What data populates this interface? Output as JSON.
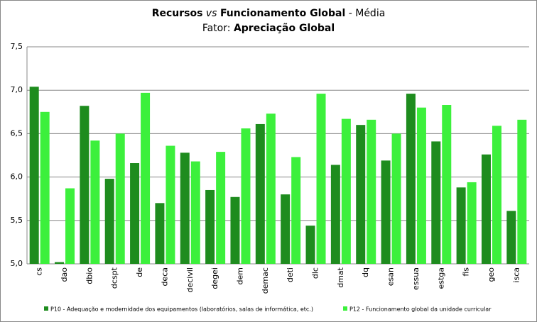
{
  "chart_data": {
    "type": "bar",
    "title": {
      "bold1": "Recursos",
      "italic": "vs",
      "bold2": "Funcionamento Global",
      "rest": "- Média"
    },
    "subtitle": {
      "prefix": "Fator:",
      "bold": "Apreciação Global"
    },
    "categories": [
      "cs",
      "dao",
      "dbio",
      "dcspt",
      "de",
      "deca",
      "decivil",
      "degei",
      "dem",
      "demac",
      "deti",
      "dlc",
      "dmat",
      "dq",
      "esan",
      "essua",
      "estga",
      "fis",
      "geo",
      "isca"
    ],
    "series": [
      {
        "name": "P10 - Adequação e modernidade dos equipamentos (laboratórios, salas de informática, etc.)",
        "color": "#1e8c1e",
        "values": [
          7.04,
          5.02,
          6.82,
          5.98,
          6.16,
          5.7,
          6.28,
          5.85,
          5.77,
          6.61,
          5.8,
          5.44,
          6.14,
          6.6,
          6.19,
          6.96,
          6.41,
          5.88,
          6.26,
          5.61
        ]
      },
      {
        "name": "P12 - Funcionamento global da unidade curricular",
        "color": "#3cf03c",
        "values": [
          6.75,
          5.87,
          6.42,
          6.5,
          6.97,
          6.36,
          6.18,
          6.29,
          6.56,
          6.73,
          6.23,
          6.96,
          6.67,
          6.66,
          6.5,
          6.8,
          6.83,
          5.94,
          6.59,
          6.66
        ]
      }
    ],
    "ylim": [
      5,
      7.5
    ],
    "yticks": [
      {
        "value": 5,
        "label": "5,0"
      },
      {
        "value": 5.5,
        "label": "5,5"
      },
      {
        "value": 6,
        "label": "6,0"
      },
      {
        "value": 6.5,
        "label": "6,5"
      },
      {
        "value": 7,
        "label": "7,0"
      },
      {
        "value": 7.5,
        "label": "7,5"
      }
    ],
    "grid": true,
    "legend": "bottom"
  }
}
